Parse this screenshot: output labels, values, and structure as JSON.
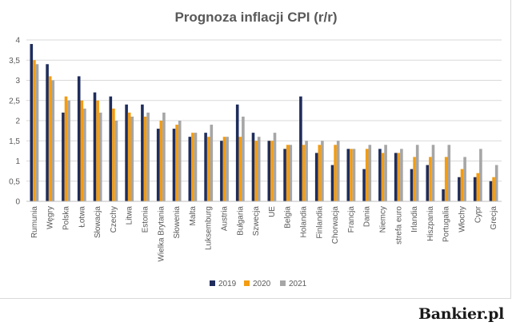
{
  "chart_data": {
    "type": "bar",
    "title": "Prognoza inflacji CPI (r/r)",
    "xlabel": "",
    "ylabel": "",
    "ylim": [
      0,
      4
    ],
    "yticks": [
      "0",
      "0,5",
      "1",
      "1,5",
      "2",
      "2,5",
      "3",
      "3,5",
      "4"
    ],
    "grid": true,
    "legend": "bottom",
    "categories": [
      "Rumunia",
      "Węgry",
      "Polska",
      "Łotwa",
      "Słowacja",
      "Czechy",
      "Litwa",
      "Estonia",
      "Wielka Brytania",
      "Słowenia",
      "Malta",
      "Luksemburg",
      "Austria",
      "Bułgaria",
      "Szwecja",
      "UE",
      "Belgia",
      "Holandia",
      "Finlandia",
      "Chorwacja",
      "Francja",
      "Dania",
      "Niemcy",
      "strefa euro",
      "Irlandia",
      "Hiszpania",
      "Portugalia",
      "Włochy",
      "Cypr",
      "Grecja"
    ],
    "series": [
      {
        "name": "2019",
        "color": "#1f2d5c",
        "values": [
          3.9,
          3.4,
          2.2,
          3.1,
          2.7,
          2.6,
          2.4,
          2.4,
          1.8,
          1.8,
          1.6,
          1.7,
          1.5,
          2.4,
          1.7,
          1.5,
          1.3,
          2.6,
          1.2,
          0.9,
          1.3,
          0.8,
          1.3,
          1.2,
          0.8,
          0.9,
          0.3,
          0.6,
          0.6,
          0.5
        ]
      },
      {
        "name": "2020",
        "color": "#f39c12",
        "values": [
          3.5,
          3.1,
          2.6,
          2.5,
          2.5,
          2.3,
          2.2,
          2.1,
          2.0,
          1.9,
          1.7,
          1.6,
          1.6,
          1.6,
          1.5,
          1.5,
          1.4,
          1.4,
          1.4,
          1.4,
          1.3,
          1.3,
          1.2,
          1.2,
          1.1,
          1.1,
          1.1,
          0.8,
          0.7,
          0.6
        ]
      },
      {
        "name": "2021",
        "color": "#a6a6a6",
        "values": [
          3.4,
          3.0,
          2.5,
          2.3,
          2.2,
          2.0,
          2.1,
          2.2,
          2.2,
          2.0,
          1.7,
          1.9,
          1.6,
          2.1,
          1.6,
          1.7,
          1.4,
          1.5,
          1.5,
          1.5,
          1.3,
          1.4,
          1.4,
          1.3,
          1.4,
          1.4,
          1.4,
          1.1,
          1.3,
          0.9
        ]
      }
    ]
  },
  "brand": "Bankier.pl"
}
